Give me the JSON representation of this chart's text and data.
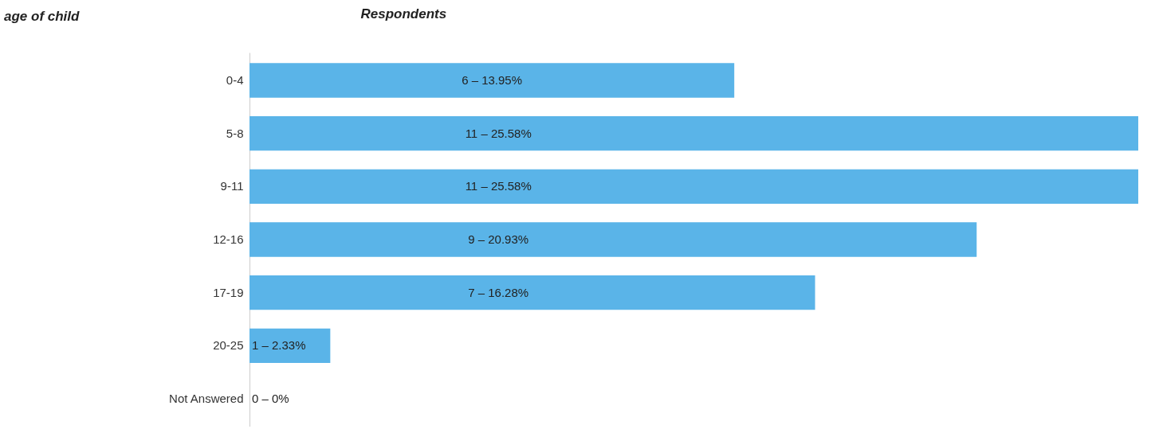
{
  "chart_data": {
    "type": "bar",
    "orientation": "horizontal",
    "xlabel": "Respondents",
    "annotations": [
      "age of child"
    ],
    "categories": [
      "0-4",
      "5-8",
      "9-11",
      "12-16",
      "17-19",
      "20-25",
      "Not Answered"
    ],
    "values": [
      6,
      11,
      11,
      9,
      7,
      1,
      0
    ],
    "value_labels": [
      "6 – 13.95%",
      "11 – 25.58%",
      "11 – 25.58%",
      "9 – 20.93%",
      "7 – 16.28%",
      "1 – 2.33%",
      "0 – 0%"
    ],
    "color": "#5ab4e8",
    "xlim": [
      0,
      11
    ],
    "grid": false,
    "tick_labels": "y"
  }
}
